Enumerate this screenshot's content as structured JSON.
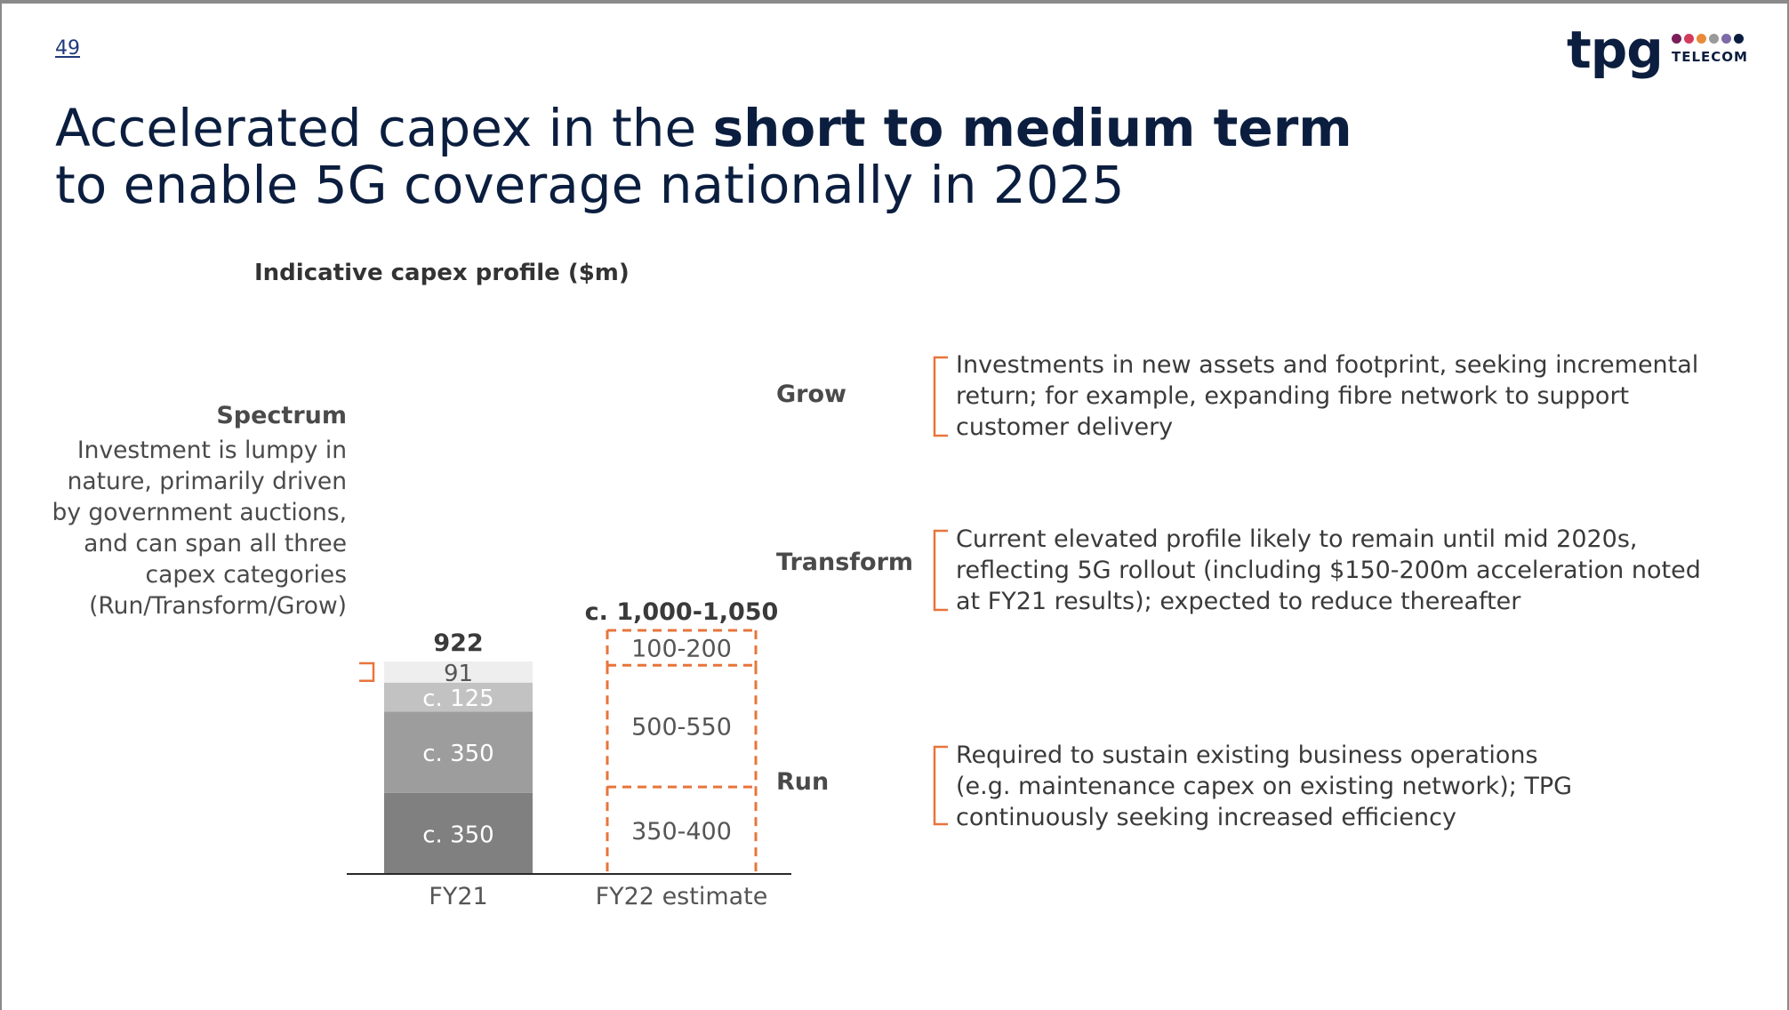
{
  "page_number": "49",
  "logo": {
    "text": "tpg",
    "subtext": "TELECOM",
    "dot_colors": [
      "#7b1e5a",
      "#d43a5c",
      "#e88a3a",
      "#9a9a9a",
      "#7d6aa8",
      "#0b1e3f"
    ]
  },
  "title": {
    "line1_regular": "Accelerated capex in the ",
    "line1_bold": "short to medium term",
    "line2": "to enable 5G coverage nationally in 2025"
  },
  "chart_title": "Indicative capex profile ($m)",
  "spectrum": {
    "label": "Spectrum",
    "description": [
      "Investment is lumpy in",
      "nature, primarily driven",
      "by government auctions,",
      "and can span all three",
      "capex categories",
      "(Run/Transform/Grow)"
    ]
  },
  "chart_data": {
    "type": "bar",
    "stacked": true,
    "title": "Indicative capex profile ($m)",
    "categories": [
      "FY21",
      "FY22 estimate"
    ],
    "units": "$m",
    "totals": [
      "922",
      "c. 1,000-1,050"
    ],
    "series": [
      {
        "name": "Run",
        "values": [
          350,
          [
            350,
            400
          ]
        ],
        "labels": [
          "c. 350",
          "350-400"
        ],
        "color": "#808080"
      },
      {
        "name": "Transform",
        "values": [
          350,
          [
            500,
            550
          ]
        ],
        "labels": [
          "c. 350",
          "500-550"
        ],
        "color": "#9d9d9d"
      },
      {
        "name": "Grow",
        "values": [
          125,
          [
            100,
            200
          ]
        ],
        "labels": [
          "c. 125",
          "100-200"
        ],
        "color": "#c2c2c2"
      },
      {
        "name": "Spectrum",
        "values": [
          91,
          null
        ],
        "labels": [
          "91",
          ""
        ],
        "color": "#eeeeee"
      }
    ],
    "fy22_style": "dashed-outline",
    "accent_color": "#e8743b"
  },
  "categories_right": [
    {
      "name": "Grow",
      "description": [
        "Investments in new assets and footprint, seeking incremental",
        "return; for example, expanding fibre network to support",
        "customer delivery"
      ]
    },
    {
      "name": "Transform",
      "description": [
        "Current elevated profile likely to remain until mid 2020s,",
        "reflecting 5G rollout (including $150-200m acceleration noted",
        "at FY21 results); expected to reduce thereafter"
      ]
    },
    {
      "name": "Run",
      "description": [
        "Required to sustain existing business operations",
        "(e.g. maintenance capex on existing network); TPG",
        "continuously seeking increased efficiency"
      ]
    }
  ]
}
